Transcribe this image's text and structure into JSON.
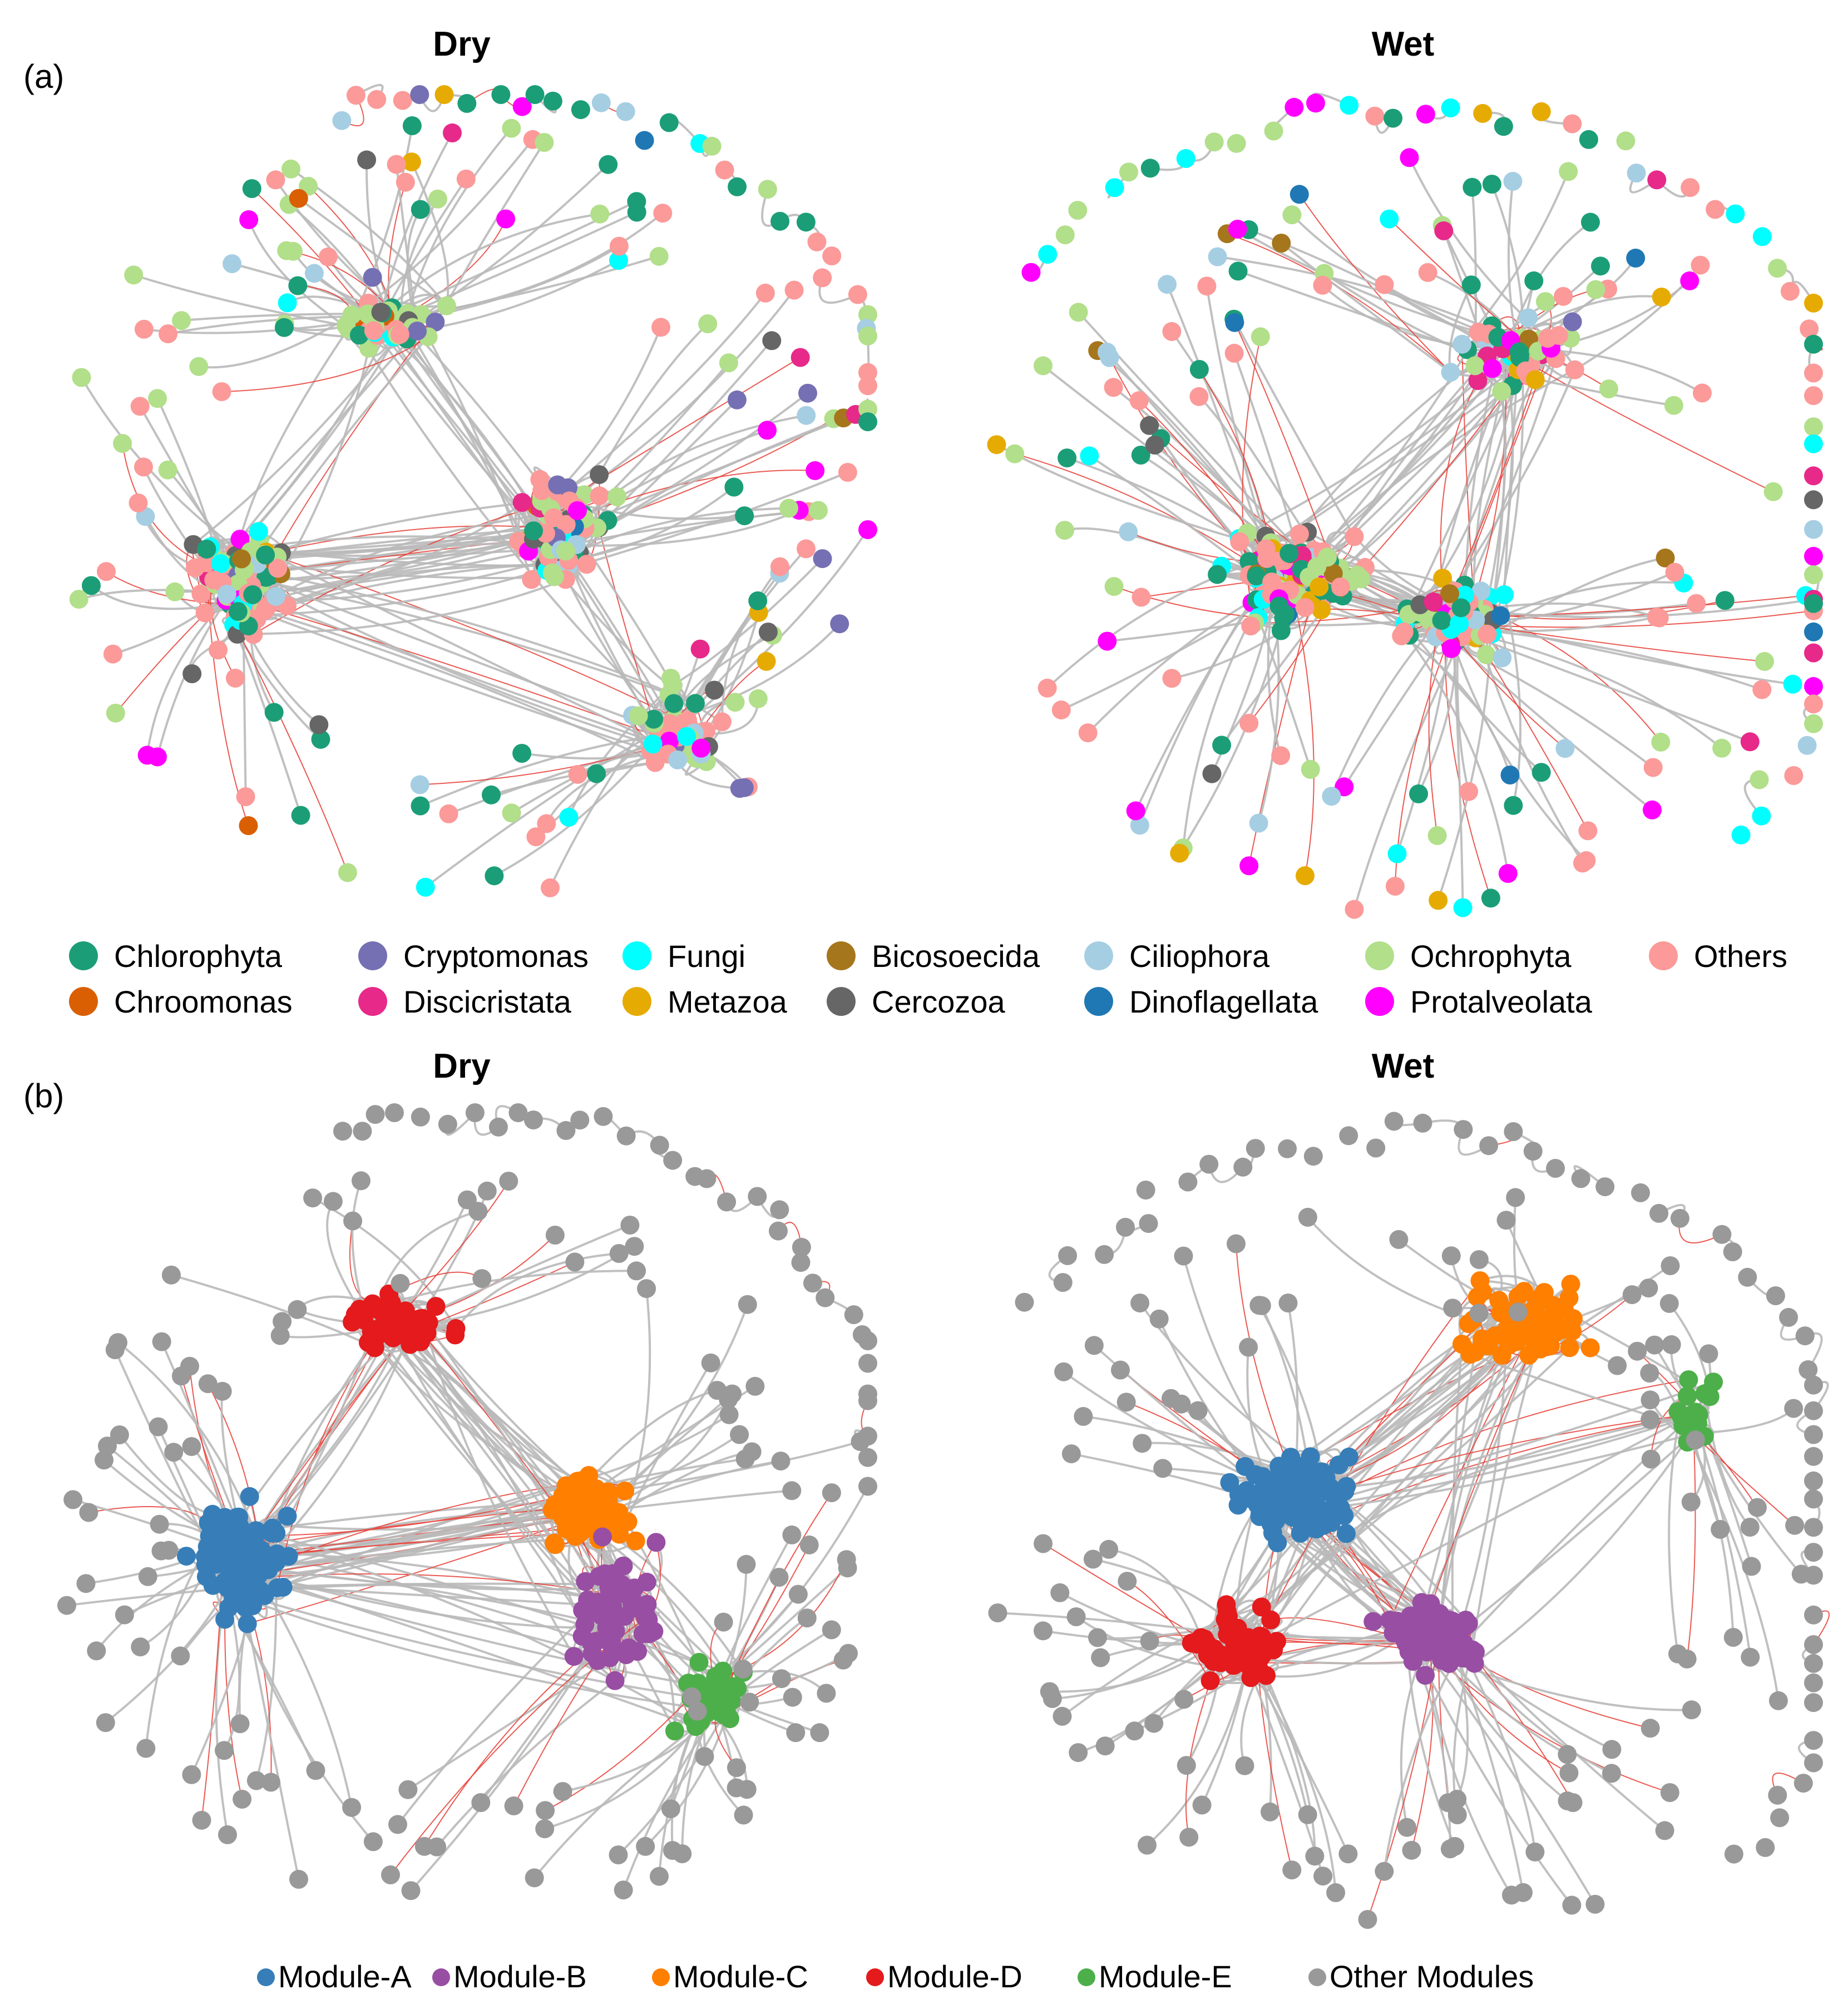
{
  "panels": {
    "a": {
      "label": "(a)",
      "left_title": "Dry",
      "right_title": "Wet",
      "legend": [
        {
          "name": "Chlorophyta",
          "color": "#1b9e77"
        },
        {
          "name": "Cryptomonas",
          "color": "#7570b3"
        },
        {
          "name": "Fungi",
          "color": "#00ffff"
        },
        {
          "name": "Bicosoecida",
          "color": "#a6761d"
        },
        {
          "name": "Ciliophora",
          "color": "#a6cee3"
        },
        {
          "name": "Ochrophyta",
          "color": "#b2df8a"
        },
        {
          "name": "Others",
          "color": "#fb9a99"
        },
        {
          "name": "Chroomonas",
          "color": "#d95f02"
        },
        {
          "name": "Discicristata",
          "color": "#e7298a"
        },
        {
          "name": "Metazoa",
          "color": "#e6ab02"
        },
        {
          "name": "Cercozoa",
          "color": "#666666"
        },
        {
          "name": "Dinoflagellata",
          "color": "#1f78b4"
        },
        {
          "name": "Protalveolata",
          "color": "#ff00ff"
        }
      ]
    },
    "b": {
      "label": "(b)",
      "left_title": "Dry",
      "right_title": "Wet",
      "legend": [
        {
          "name": "Module-A",
          "color": "#377eb8"
        },
        {
          "name": "Module-B",
          "color": "#984ea3"
        },
        {
          "name": "Module-C",
          "color": "#ff7f00"
        },
        {
          "name": "Module-D",
          "color": "#e41a1c"
        },
        {
          "name": "Module-E",
          "color": "#4daf4a"
        },
        {
          "name": "Other Modules",
          "color": "#999999"
        }
      ]
    }
  },
  "edge_colors": {
    "positive": "#b9b9b9",
    "negative": "#e8473f"
  }
}
